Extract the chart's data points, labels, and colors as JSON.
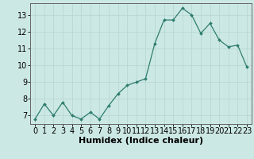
{
  "x": [
    0,
    1,
    2,
    3,
    4,
    5,
    6,
    7,
    8,
    9,
    10,
    11,
    12,
    13,
    14,
    15,
    16,
    17,
    18,
    19,
    20,
    21,
    22,
    23
  ],
  "y": [
    6.8,
    7.7,
    7.0,
    7.8,
    7.0,
    6.8,
    7.2,
    6.8,
    7.6,
    8.3,
    8.8,
    9.0,
    9.2,
    11.3,
    12.7,
    12.7,
    13.4,
    13.0,
    11.9,
    12.5,
    11.5,
    11.1,
    11.2,
    9.9
  ],
  "xlabel": "Humidex (Indice chaleur)",
  "xlim": [
    -0.5,
    23.5
  ],
  "ylim": [
    6.5,
    13.7
  ],
  "yticks": [
    7,
    8,
    9,
    10,
    11,
    12,
    13
  ],
  "xticks": [
    0,
    1,
    2,
    3,
    4,
    5,
    6,
    7,
    8,
    9,
    10,
    11,
    12,
    13,
    14,
    15,
    16,
    17,
    18,
    19,
    20,
    21,
    22,
    23
  ],
  "line_color": "#2e7d6e",
  "marker_color": "#2e7d6e",
  "bg_color": "#cce8e4",
  "grid_color": "#b8d8d4",
  "border_color": "#666666",
  "xlabel_fontsize": 8,
  "tick_fontsize": 7
}
